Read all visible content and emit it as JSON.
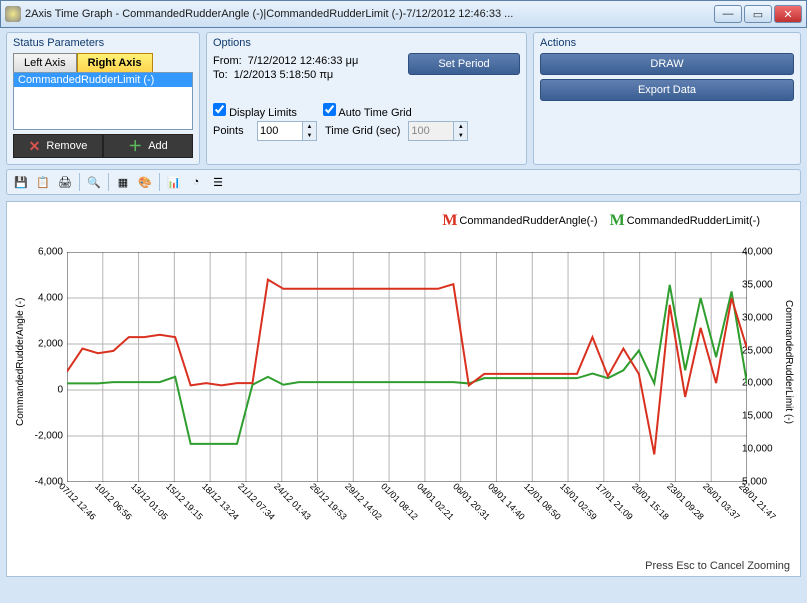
{
  "window": {
    "title": "2Axis Time Graph - CommandedRudderAngle (-)|CommandedRudderLimit (-)-7/12/2012 12:46:33 ..."
  },
  "status": {
    "title": "Status Parameters",
    "tabs": {
      "left": "Left Axis",
      "right": "Right Axis",
      "active": "right"
    },
    "items": [
      "CommandedRudderLimit (-)"
    ],
    "remove": "Remove",
    "add": "Add"
  },
  "options": {
    "title": "Options",
    "from_label": "From:",
    "from_value": "7/12/2012 12:46:33 μμ",
    "to_label": "To:",
    "to_value": "1/2/2013 5:18:50 πμ",
    "set_period": "Set Period",
    "display_limits": {
      "label": "Display Limits",
      "checked": true
    },
    "auto_time_grid": {
      "label": "Auto Time Grid",
      "checked": true
    },
    "points_label": "Points",
    "points_value": "100",
    "time_grid_label": "Time Grid (sec)",
    "time_grid_value": "100"
  },
  "actions": {
    "title": "Actions",
    "draw": "DRAW",
    "export": "Export Data"
  },
  "toolbar_icons": [
    "save",
    "copy",
    "print",
    "zoom",
    "grid",
    "palette",
    "bars",
    "pie",
    "list"
  ],
  "chart": {
    "legend": [
      {
        "label": "CommandedRudderAngle(-)",
        "color": "#d9301f"
      },
      {
        "label": "CommandedRudderLimit(-)",
        "color": "#2f9e2f"
      }
    ],
    "left_axis": {
      "label": "CommandedRudderAngle (-)",
      "min": -4000,
      "max": 6000,
      "step": 2000
    },
    "right_axis": {
      "label": "CommandedRudderLimit (-)",
      "min": 5000,
      "max": 40000,
      "step": 5000
    },
    "x_labels": [
      "07/12 12:46",
      "10/12 06:56",
      "13/12 01:05",
      "15/12 19:15",
      "18/12 13:24",
      "21/12 07:34",
      "24/12 01:43",
      "26/12 19:53",
      "29/12 14:02",
      "01/01 08:12",
      "04/01 02:21",
      "06/01 20:31",
      "09/01 14:40",
      "12/01 08:50",
      "15/01 02:59",
      "17/01 21:09",
      "20/01 15:18",
      "23/01 09:28",
      "26/01 03:37",
      "28/01 21:47"
    ],
    "grid_color": "#b5b5b5",
    "series": {
      "red": {
        "color": "#d9301f",
        "axis": "left",
        "points": [
          800,
          1800,
          1600,
          1700,
          2300,
          2300,
          2400,
          2300,
          200,
          300,
          200,
          300,
          300,
          4800,
          4400,
          4400,
          4400,
          4400,
          4400,
          4400,
          4400,
          4400,
          4400,
          4400,
          4400,
          4600,
          200,
          700,
          700,
          700,
          700,
          700,
          700,
          700,
          2300,
          600,
          1800,
          700,
          -2800,
          3700,
          -300,
          2700,
          300,
          4000,
          1800
        ]
      },
      "green": {
        "color": "#2f9e2f",
        "axis": "right",
        "points": [
          20000,
          20000,
          20000,
          20200,
          20200,
          20200,
          20200,
          21000,
          10800,
          10800,
          10800,
          10800,
          19800,
          21000,
          19800,
          20200,
          20200,
          20200,
          20200,
          20200,
          20200,
          20200,
          20200,
          20200,
          20200,
          20200,
          20000,
          20800,
          20800,
          20800,
          20800,
          20800,
          20800,
          20800,
          21500,
          20800,
          22000,
          25000,
          20000,
          35000,
          22000,
          33000,
          24000,
          34000,
          20000
        ]
      }
    },
    "footer": "Press Esc to Cancel Zooming"
  }
}
